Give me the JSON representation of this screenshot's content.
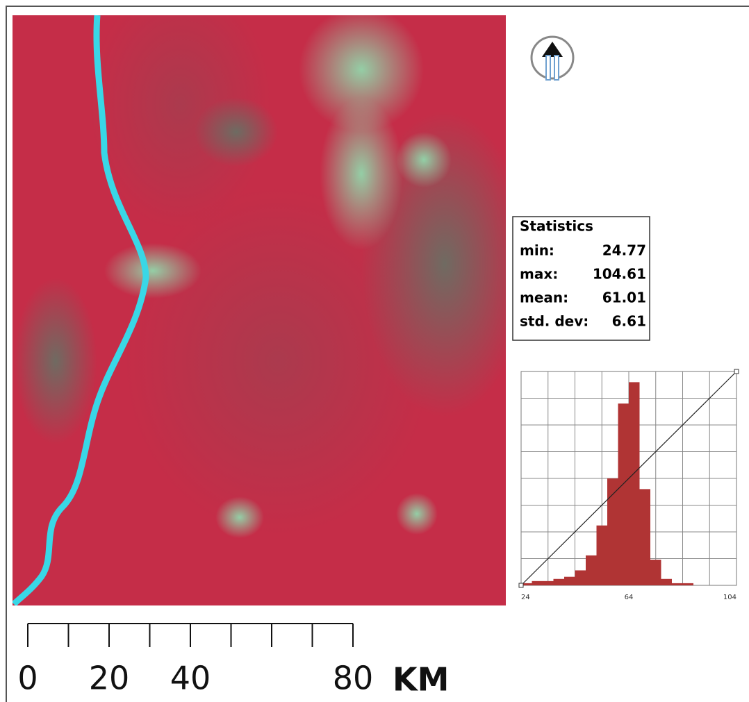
{
  "statistics": {
    "title": "Statistics",
    "rows": [
      {
        "label": "min:",
        "value": 24.77
      },
      {
        "label": "max:",
        "value": 104.61
      },
      {
        "label": "mean:",
        "value": 61.01
      },
      {
        "label": "std. dev:",
        "value": 6.61
      }
    ]
  },
  "histogram": {
    "bins": [
      24,
      28,
      32,
      36,
      40,
      44,
      48,
      52,
      56,
      60,
      64,
      68,
      72,
      76,
      80,
      84,
      88,
      92,
      96,
      100,
      104
    ],
    "counts": [
      1,
      2,
      2,
      3,
      4,
      7,
      14,
      28,
      50,
      85,
      95,
      45,
      12,
      3,
      1,
      1,
      0,
      0,
      0,
      0
    ],
    "xlim": [
      24,
      104
    ],
    "ylim": [
      0,
      100
    ],
    "xticks": [
      24,
      64,
      104
    ],
    "color": "#b03434"
  },
  "scale_bar": {
    "range": [
      0,
      80
    ],
    "ticks": [
      0,
      10,
      20,
      30,
      40,
      50,
      60,
      70,
      80
    ],
    "labels": [
      0,
      20,
      40,
      80
    ],
    "unit": "KM"
  }
}
